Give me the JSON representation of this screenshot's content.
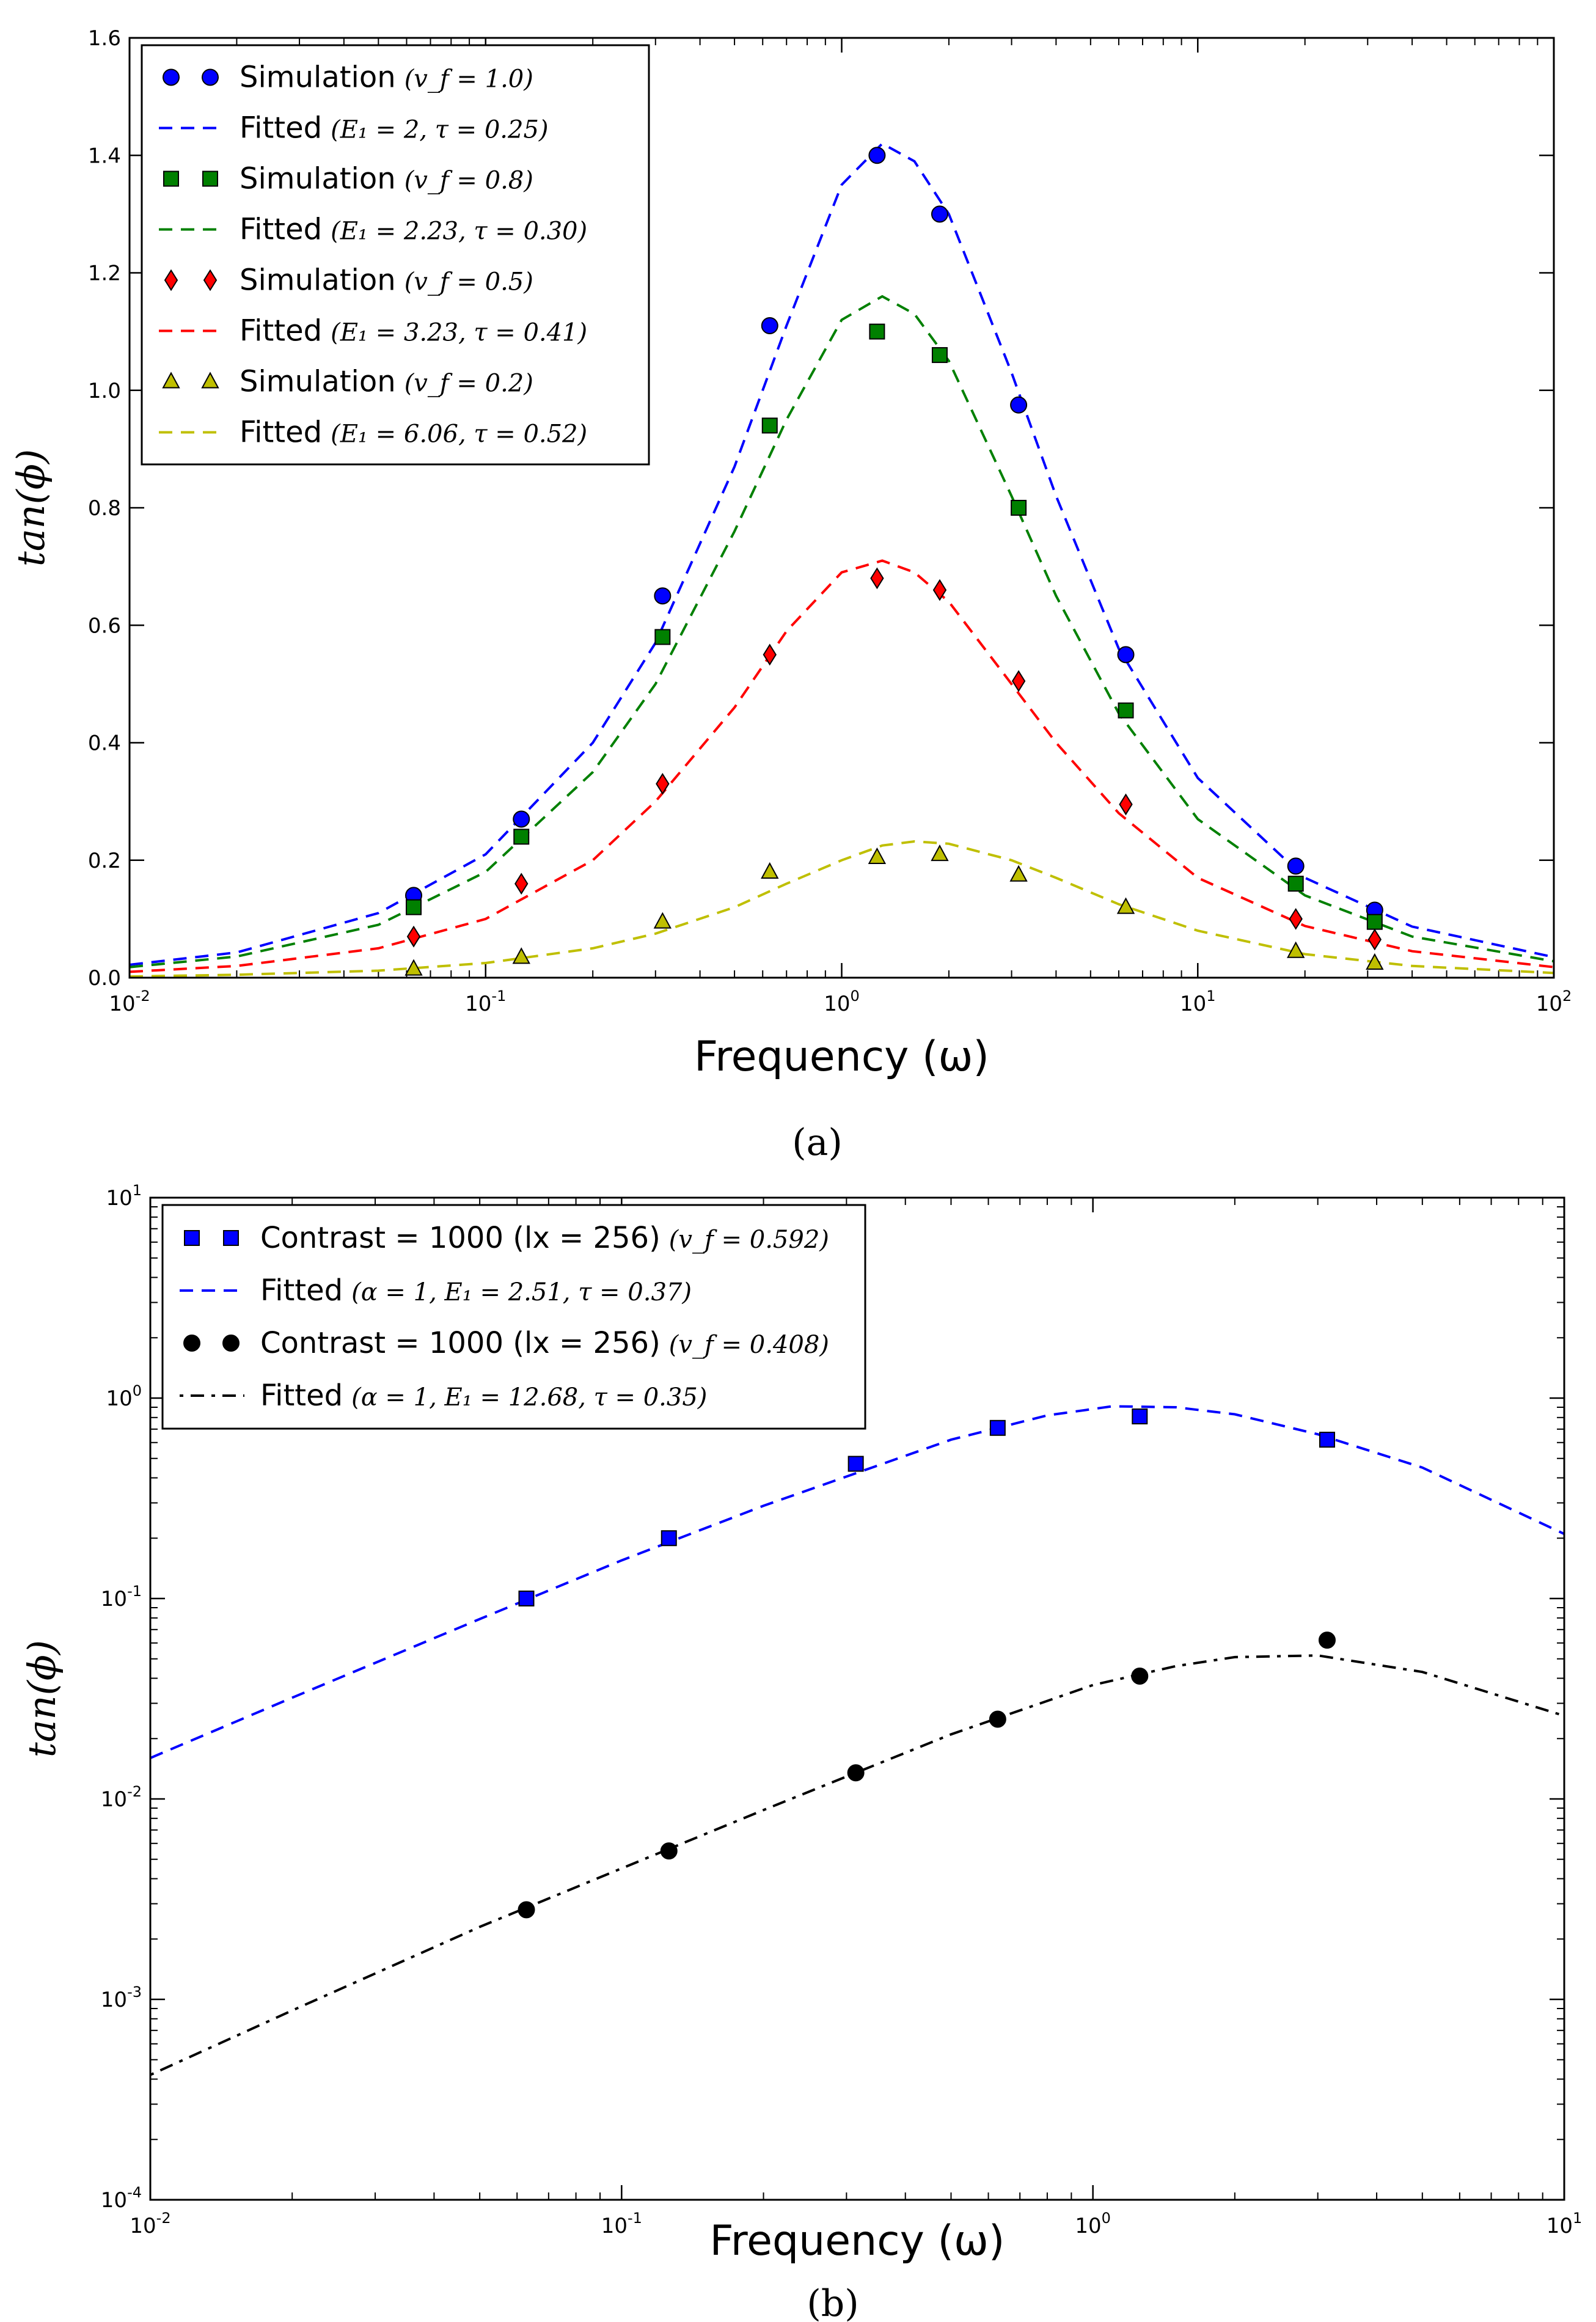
{
  "chart_data": [
    {
      "panel": "(a)",
      "caption": "(a)",
      "type": "scatter",
      "xlabel": "Frequency (ω)",
      "ylabel": "tan(ϕ)",
      "xscale": "log",
      "yscale": "linear",
      "xlim": [
        0.01,
        100
      ],
      "ylim": [
        0.0,
        1.6
      ],
      "xticks": [
        0.01,
        0.1,
        1,
        10,
        100
      ],
      "xtick_labels": [
        {
          "base": "10",
          "exp": "-2"
        },
        {
          "base": "10",
          "exp": "-1"
        },
        {
          "base": "10",
          "exp": "0"
        },
        {
          "base": "10",
          "exp": "1"
        },
        {
          "base": "10",
          "exp": "2"
        }
      ],
      "yticks": [
        0.0,
        0.2,
        0.4,
        0.6,
        0.8,
        1.0,
        1.2,
        1.4,
        1.6
      ],
      "ytick_labels": [
        "0.0",
        "0.2",
        "0.4",
        "0.6",
        "0.8",
        "1.0",
        "1.2",
        "1.4",
        "1.6"
      ],
      "legend_position": "top-left",
      "series": [
        {
          "name": "Simulation",
          "math": "(v_f = 1.0)",
          "kind": "points",
          "marker": "circle",
          "color": "#0000ff",
          "x": [
            0.0628,
            0.126,
            0.314,
            0.628,
            1.257,
            1.885,
            3.14,
            6.28,
            18.85,
            31.4
          ],
          "y": [
            0.14,
            0.27,
            0.65,
            1.11,
            1.4,
            1.3,
            0.975,
            0.55,
            0.19,
            0.115
          ]
        },
        {
          "name": "Fitted",
          "math": "(E₁ = 2, τ = 0.25)",
          "kind": "fit",
          "dash": "dashed",
          "color": "#0000ff",
          "x": [
            0.01,
            0.02,
            0.05,
            0.1,
            0.2,
            0.3,
            0.5,
            0.7,
            1.0,
            1.3,
            1.6,
            2.0,
            3.0,
            4.0,
            6.0,
            10,
            20,
            40,
            100
          ],
          "y": [
            0.022,
            0.043,
            0.11,
            0.21,
            0.4,
            0.57,
            0.87,
            1.11,
            1.35,
            1.42,
            1.39,
            1.3,
            1.03,
            0.82,
            0.56,
            0.34,
            0.17,
            0.087,
            0.035
          ]
        },
        {
          "name": "Simulation",
          "math": "(v_f = 0.8)",
          "kind": "points",
          "marker": "square",
          "color": "#008000",
          "x": [
            0.0628,
            0.126,
            0.314,
            0.628,
            1.257,
            1.885,
            3.14,
            6.28,
            18.85,
            31.4
          ],
          "y": [
            0.12,
            0.24,
            0.58,
            0.94,
            1.1,
            1.06,
            0.8,
            0.455,
            0.16,
            0.095
          ]
        },
        {
          "name": "Fitted",
          "math": "(E₁ = 2.23, τ = 0.30)",
          "kind": "fit",
          "dash": "dashed",
          "color": "#008000",
          "x": [
            0.01,
            0.02,
            0.05,
            0.1,
            0.2,
            0.3,
            0.5,
            0.7,
            1.0,
            1.3,
            1.6,
            2.0,
            3.0,
            4.0,
            6.0,
            10,
            20,
            40,
            100
          ],
          "y": [
            0.018,
            0.036,
            0.09,
            0.18,
            0.35,
            0.5,
            0.76,
            0.95,
            1.12,
            1.16,
            1.13,
            1.05,
            0.82,
            0.65,
            0.45,
            0.27,
            0.14,
            0.07,
            0.028
          ]
        },
        {
          "name": "Simulation",
          "math": "(v_f = 0.5)",
          "kind": "points",
          "marker": "diamond",
          "color": "#ff0000",
          "x": [
            0.0628,
            0.126,
            0.314,
            0.628,
            1.257,
            1.885,
            3.14,
            6.28,
            18.85,
            31.4
          ],
          "y": [
            0.07,
            0.16,
            0.33,
            0.55,
            0.68,
            0.66,
            0.505,
            0.295,
            0.1,
            0.065
          ]
        },
        {
          "name": "Fitted",
          "math": "(E₁ = 3.23, τ = 0.41)",
          "kind": "fit",
          "dash": "dashed",
          "color": "#ff0000",
          "x": [
            0.01,
            0.02,
            0.05,
            0.1,
            0.2,
            0.3,
            0.5,
            0.7,
            1.0,
            1.3,
            1.6,
            2.0,
            3.0,
            4.0,
            6.0,
            10,
            20,
            40,
            100
          ],
          "y": [
            0.01,
            0.02,
            0.05,
            0.1,
            0.2,
            0.3,
            0.46,
            0.59,
            0.69,
            0.71,
            0.69,
            0.64,
            0.5,
            0.4,
            0.28,
            0.17,
            0.088,
            0.045,
            0.018
          ]
        },
        {
          "name": "Simulation",
          "math": "(v_f = 0.2)",
          "kind": "points",
          "marker": "triangle",
          "color": "#bfbf00",
          "x": [
            0.0628,
            0.126,
            0.314,
            0.628,
            1.257,
            1.885,
            3.14,
            6.28,
            18.85,
            31.4
          ],
          "y": [
            0.015,
            0.035,
            0.095,
            0.18,
            0.205,
            0.21,
            0.175,
            0.12,
            0.045,
            0.025
          ]
        },
        {
          "name": "Fitted",
          "math": "(E₁ = 6.06, τ = 0.52)",
          "kind": "fit",
          "dash": "dashed",
          "color": "#bfbf00",
          "x": [
            0.01,
            0.02,
            0.05,
            0.1,
            0.2,
            0.3,
            0.5,
            0.7,
            1.0,
            1.3,
            1.6,
            2.0,
            3.0,
            4.0,
            6.0,
            10,
            20,
            40,
            100
          ],
          "y": [
            0.002,
            0.005,
            0.012,
            0.025,
            0.05,
            0.075,
            0.12,
            0.16,
            0.2,
            0.225,
            0.232,
            0.228,
            0.2,
            0.17,
            0.125,
            0.08,
            0.04,
            0.02,
            0.008
          ]
        }
      ]
    },
    {
      "panel": "(b)",
      "caption": "(b)",
      "type": "scatter",
      "xlabel": "Frequency (ω)",
      "ylabel": "tan(ϕ)",
      "xscale": "log",
      "yscale": "log",
      "xlim": [
        0.01,
        10
      ],
      "ylim": [
        0.0001,
        10
      ],
      "xticks": [
        0.01,
        0.1,
        1,
        10
      ],
      "xtick_labels": [
        {
          "base": "10",
          "exp": "-2"
        },
        {
          "base": "10",
          "exp": "-1"
        },
        {
          "base": "10",
          "exp": "0"
        },
        {
          "base": "10",
          "exp": "1"
        }
      ],
      "yticks": [
        0.0001,
        0.001,
        0.01,
        0.1,
        1,
        10
      ],
      "ytick_labels": [
        {
          "base": "10",
          "exp": "-4"
        },
        {
          "base": "10",
          "exp": "-3"
        },
        {
          "base": "10",
          "exp": "-2"
        },
        {
          "base": "10",
          "exp": "-1"
        },
        {
          "base": "10",
          "exp": "0"
        },
        {
          "base": "10",
          "exp": "1"
        }
      ],
      "legend_position": "top-left",
      "series": [
        {
          "name": "Contrast = 1000 (lx = 256)",
          "math": "(v_f = 0.592)",
          "kind": "points",
          "marker": "square",
          "color": "#0000ff",
          "x": [
            0.0628,
            0.126,
            0.314,
            0.628,
            1.257,
            3.14
          ],
          "y": [
            0.1,
            0.2,
            0.47,
            0.71,
            0.81,
            0.62
          ]
        },
        {
          "name": "Fitted",
          "math": "(α = 1, E₁ = 2.51, τ = 0.37)",
          "kind": "fit",
          "dash": "dashed",
          "color": "#0000ff",
          "x": [
            0.01,
            0.02,
            0.05,
            0.1,
            0.2,
            0.5,
            0.8,
            1.1,
            1.5,
            2.0,
            3.0,
            5.0,
            10
          ],
          "y": [
            0.016,
            0.032,
            0.079,
            0.155,
            0.29,
            0.62,
            0.82,
            0.91,
            0.9,
            0.83,
            0.66,
            0.45,
            0.21
          ]
        },
        {
          "name": "Contrast = 1000 (lx = 256)",
          "math": "(v_f = 0.408)",
          "kind": "points",
          "marker": "circle",
          "color": "#000000",
          "x": [
            0.0628,
            0.126,
            0.314,
            0.628,
            1.257,
            3.14
          ],
          "y": [
            0.0028,
            0.0055,
            0.0135,
            0.025,
            0.041,
            0.062
          ]
        },
        {
          "name": "Fitted",
          "math": "(α = 1, E₁ = 12.68, τ = 0.35)",
          "kind": "fit",
          "dash": "dashdot",
          "color": "#000000",
          "x": [
            0.01,
            0.02,
            0.05,
            0.1,
            0.2,
            0.5,
            1.0,
            1.5,
            2.0,
            3.0,
            5.0,
            10
          ],
          "y": [
            0.00042,
            0.00088,
            0.0023,
            0.0045,
            0.0088,
            0.021,
            0.037,
            0.046,
            0.051,
            0.052,
            0.043,
            0.026
          ]
        }
      ]
    }
  ]
}
